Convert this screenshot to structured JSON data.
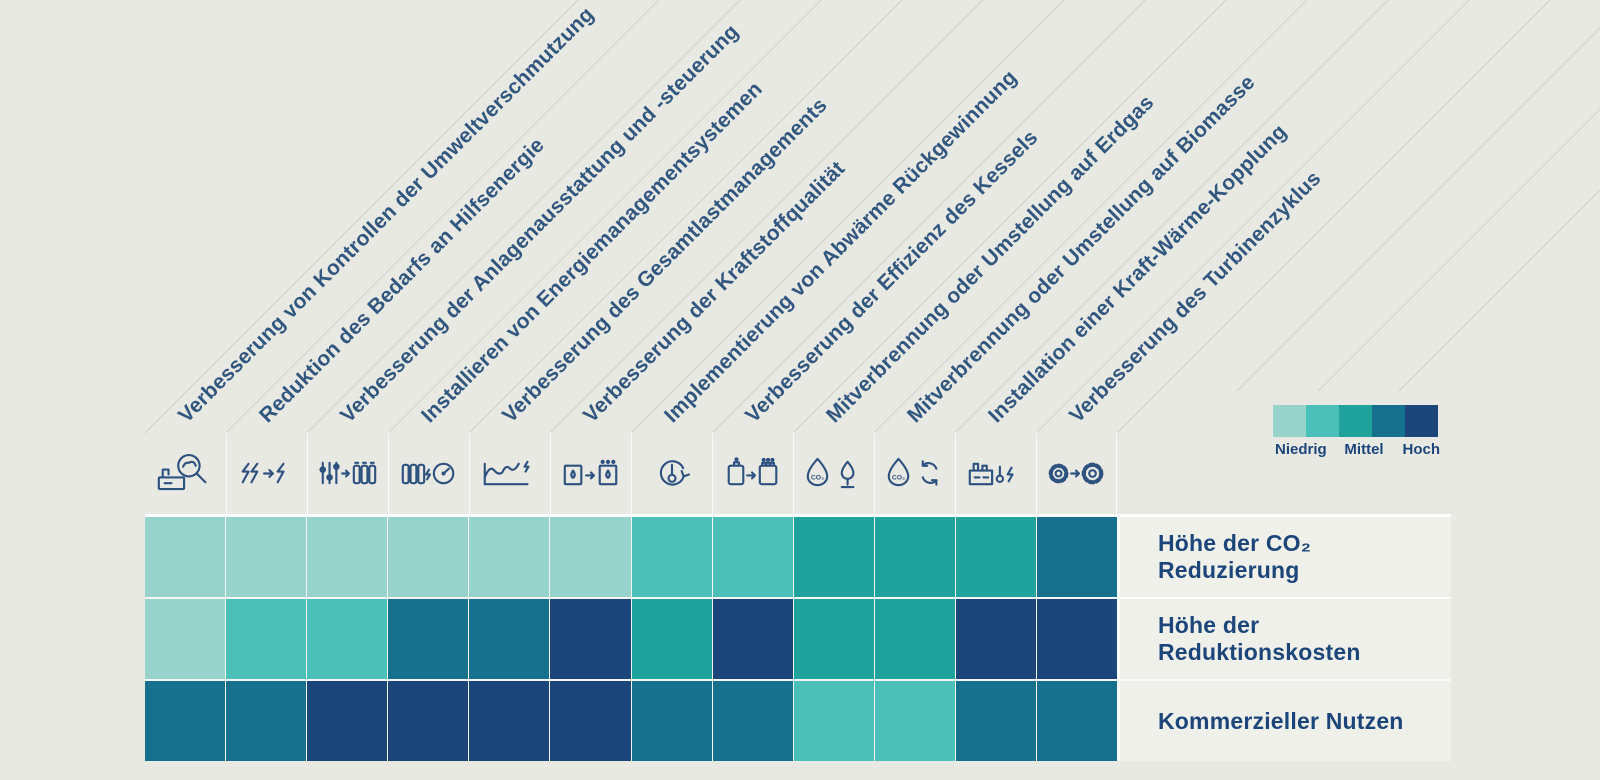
{
  "page": {
    "background_color": "#E9E9E4",
    "band_color": "#F0F0EB",
    "text_color": "#1C4679",
    "header_text_color": "#31577F",
    "icon_color": "#2E527F",
    "divider_line_color": "#D7D7D1"
  },
  "legend": {
    "labels": [
      "Niedrig",
      "Mittel",
      "Hoch"
    ],
    "colors": [
      "#97D3CA",
      "#4BC0B8",
      "#21A39D",
      "#16708E",
      "#1C4679"
    ],
    "position": "top-right"
  },
  "columns": [
    {
      "label": "Verbesserung von Kontrollen der Umweltverschmutzung",
      "icon": "factory-inspection-icon"
    },
    {
      "label": "Reduktion des Bedarfs an Hilfsenergie",
      "icon": "reduce-energy-bolts-icon"
    },
    {
      "label": "Verbesserung der Anlagenausstattung und -steuerung",
      "icon": "controls-upgrade-icon"
    },
    {
      "label": "Installieren von Energiemanagementsystemen",
      "icon": "battery-gauge-icon"
    },
    {
      "label": "Verbesserung des Gesamtlastmanagements",
      "icon": "load-curve-icon"
    },
    {
      "label": "Verbesserung der Kraftstoffqualität",
      "icon": "fuel-barrel-upgrade-icon"
    },
    {
      "label": "Implementierung von Abwärme Rückgewinnung",
      "icon": "heat-recovery-cycle-icon"
    },
    {
      "label": "Verbesserung der Effizienz des Kessels",
      "icon": "boiler-upgrade-icon"
    },
    {
      "label": "Mitverbrennung oder Umstellung auf Erdgas",
      "icon": "co2-flame-gas-icon"
    },
    {
      "label": "Mitverbrennung oder Umstellung auf Biomasse",
      "icon": "co2-flame-recycle-icon"
    },
    {
      "label": "Installation einer Kraft-Wärme-Kopplung",
      "icon": "chp-plant-icon"
    },
    {
      "label": "Verbesserung des Turbinenzyklus",
      "icon": "gears-upgrade-icon"
    }
  ],
  "rows": [
    {
      "label": "Höhe der CO₂ Reduzierung"
    },
    {
      "label": "Höhe der Reduktionskosten"
    },
    {
      "label": "Kommerzieller Nutzen"
    }
  ],
  "chart_data": {
    "type": "heatmap",
    "categories": [
      "Verbesserung von Kontrollen der Umweltverschmutzung",
      "Reduktion des Bedarfs an Hilfsenergie",
      "Verbesserung der Anlagenausstattung und -steuerung",
      "Installieren von Energiemanagementsystemen",
      "Verbesserung des Gesamtlastmanagements",
      "Verbesserung der Kraftstoffqualität",
      "Implementierung von Abwärme Rückgewinnung",
      "Verbesserung der Effizienz des Kessels",
      "Mitverbrennung oder Umstellung auf Erdgas",
      "Mitverbrennung oder Umstellung auf Biomasse",
      "Installation einer Kraft-Wärme-Kopplung",
      "Verbesserung des Turbinenzyklus"
    ],
    "rows": [
      "Höhe der CO₂ Reduzierung",
      "Höhe der Reduktionskosten",
      "Kommerzieller Nutzen"
    ],
    "series": [
      {
        "name": "Höhe der CO₂ Reduzierung",
        "values": [
          1,
          1,
          1,
          1,
          1,
          1,
          2,
          2,
          3,
          3,
          3,
          4
        ]
      },
      {
        "name": "Höhe der Reduktionskosten",
        "values": [
          1,
          2,
          2,
          4,
          4,
          5,
          3,
          5,
          3,
          3,
          5,
          5
        ]
      },
      {
        "name": "Kommerzieller Nutzen",
        "values": [
          4,
          4,
          5,
          5,
          5,
          5,
          4,
          4,
          2,
          2,
          4,
          4
        ]
      }
    ],
    "scale": {
      "1": "Niedrig",
      "3": "Mittel",
      "5": "Hoch"
    },
    "palette": {
      "1": "#97D3CA",
      "2": "#4BC0B8",
      "3": "#21A39D",
      "4": "#16708E",
      "5": "#1C4679"
    },
    "legend_position": "top-right",
    "grid": false
  }
}
